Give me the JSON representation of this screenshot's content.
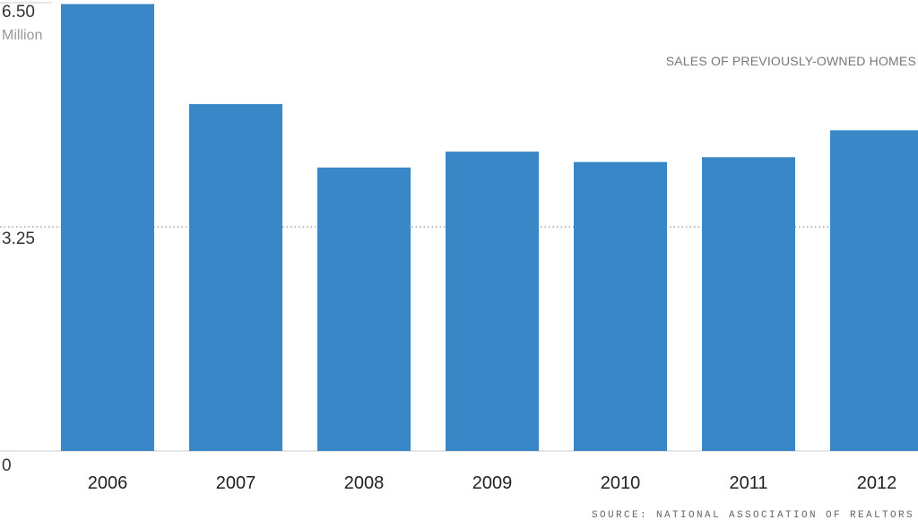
{
  "chart_data": {
    "type": "bar",
    "title": "SALES OF PREVIOUSLY-OWNED HOMES",
    "source": "SOURCE: NATIONAL ASSOCIATION OF REALTORS",
    "y_unit": "Million",
    "categories": [
      "2006",
      "2007",
      "2008",
      "2009",
      "2010",
      "2011",
      "2012"
    ],
    "values": [
      6.48,
      5.03,
      4.11,
      4.34,
      4.19,
      4.26,
      4.65
    ],
    "ylim": [
      0,
      6.5
    ],
    "yticks": [
      {
        "value": 6.5,
        "label": "6.50"
      },
      {
        "value": 3.25,
        "label": "3.25"
      },
      {
        "value": 0,
        "label": "0"
      }
    ],
    "grid": "dotted line at 3.25",
    "bar_color": "#3a87c8"
  }
}
